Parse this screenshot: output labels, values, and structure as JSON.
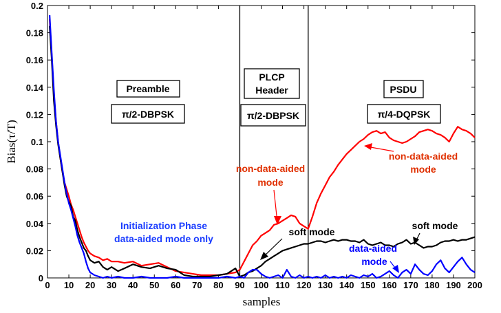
{
  "chart_data": {
    "type": "line",
    "xlabel": "samples",
    "ylabel": "Bias(τ/T)",
    "xlim": [
      0,
      200
    ],
    "ylim": [
      0,
      0.2
    ],
    "x_ticks": [
      "0",
      "10",
      "20",
      "30",
      "40",
      "50",
      "60",
      "70",
      "80",
      "90",
      "100",
      "110",
      "120",
      "130",
      "140",
      "150",
      "160",
      "170",
      "180",
      "190",
      "200"
    ],
    "y_ticks": [
      "0",
      "0.02",
      "0.04",
      "0.06",
      "0.08",
      "0.1",
      "0.12",
      "0.14",
      "0.16",
      "0.18",
      "0.2"
    ],
    "grid": false,
    "legend": "none",
    "region_dividers": [
      90,
      122
    ],
    "region_labels": {
      "preamble": "Preamble",
      "preamble_mod": "π/2-DBPSK",
      "plcp_line1": "PLCP",
      "plcp_line2": "Header",
      "plcp_mod": "π/2-DBPSK",
      "psdu": "PSDU",
      "psdu_mod": "π/4-DQPSK"
    },
    "annotations": {
      "init_line1": "Initialization Phase",
      "init_line2": "data-aided mode only",
      "ndam_left_line1": "non-data-aided",
      "ndam_left_line2": "mode",
      "ndam_right_line1": "non-data-aided",
      "ndam_right_line2": "mode",
      "soft_left": "soft mode",
      "soft_right": "soft mode",
      "da_line1": "data-aided",
      "da_line2": "mode"
    },
    "colors": {
      "red": "#ff0000",
      "black": "#000000",
      "blue": "#0000ff",
      "init_text": "#1a3cff",
      "ndam_text": "#e03000"
    },
    "series": [
      {
        "color": "#ff0000",
        "x": [
          1,
          2,
          3,
          4,
          5,
          6,
          7,
          8,
          9,
          10,
          11,
          12,
          13,
          14,
          15,
          16,
          17,
          18,
          19,
          20,
          22,
          24,
          26,
          28,
          30,
          33,
          36,
          40,
          44,
          48,
          52,
          56,
          60,
          64,
          68,
          72,
          76,
          80,
          84,
          88,
          90,
          92,
          94,
          96,
          98,
          100,
          102,
          104,
          106,
          108,
          110,
          112,
          114,
          116,
          118,
          120,
          122,
          124,
          126,
          128,
          130,
          132,
          134,
          136,
          138,
          140,
          142,
          144,
          146,
          148,
          150,
          152,
          154,
          156,
          158,
          160,
          162,
          164,
          166,
          168,
          170,
          172,
          174,
          176,
          178,
          180,
          182,
          184,
          186,
          188,
          190,
          192,
          194,
          196,
          198,
          200
        ],
        "y": [
          0.19,
          0.163,
          0.135,
          0.115,
          0.1,
          0.088,
          0.078,
          0.07,
          0.065,
          0.06,
          0.054,
          0.05,
          0.045,
          0.04,
          0.035,
          0.03,
          0.026,
          0.023,
          0.02,
          0.018,
          0.016,
          0.015,
          0.013,
          0.014,
          0.012,
          0.012,
          0.011,
          0.012,
          0.009,
          0.01,
          0.011,
          0.008,
          0.005,
          0.004,
          0.003,
          0.002,
          0.002,
          0.002,
          0.003,
          0.004,
          0.006,
          0.012,
          0.018,
          0.024,
          0.027,
          0.031,
          0.033,
          0.035,
          0.039,
          0.04,
          0.042,
          0.044,
          0.046,
          0.045,
          0.04,
          0.038,
          0.036,
          0.045,
          0.055,
          0.062,
          0.068,
          0.074,
          0.078,
          0.083,
          0.087,
          0.091,
          0.094,
          0.097,
          0.1,
          0.102,
          0.105,
          0.107,
          0.108,
          0.106,
          0.107,
          0.103,
          0.101,
          0.1,
          0.099,
          0.1,
          0.102,
          0.104,
          0.107,
          0.108,
          0.109,
          0.108,
          0.106,
          0.105,
          0.103,
          0.1,
          0.106,
          0.111,
          0.109,
          0.108,
          0.106,
          0.103
        ]
      },
      {
        "color": "#000000",
        "x": [
          1,
          2,
          3,
          4,
          5,
          6,
          7,
          8,
          9,
          10,
          11,
          12,
          13,
          14,
          15,
          16,
          17,
          18,
          19,
          20,
          22,
          24,
          26,
          28,
          30,
          33,
          36,
          40,
          44,
          48,
          52,
          56,
          60,
          64,
          68,
          72,
          76,
          80,
          84,
          88,
          90,
          92,
          94,
          96,
          98,
          100,
          102,
          104,
          106,
          108,
          110,
          112,
          114,
          116,
          118,
          120,
          122,
          124,
          126,
          128,
          130,
          132,
          134,
          136,
          138,
          140,
          142,
          144,
          146,
          148,
          150,
          152,
          154,
          156,
          158,
          160,
          162,
          164,
          166,
          168,
          170,
          172,
          174,
          176,
          178,
          180,
          182,
          184,
          186,
          188,
          190,
          192,
          194,
          196,
          198,
          200
        ],
        "y": [
          0.185,
          0.16,
          0.13,
          0.112,
          0.098,
          0.088,
          0.078,
          0.068,
          0.06,
          0.056,
          0.053,
          0.045,
          0.042,
          0.035,
          0.03,
          0.026,
          0.022,
          0.02,
          0.016,
          0.013,
          0.011,
          0.012,
          0.008,
          0.006,
          0.008,
          0.005,
          0.007,
          0.01,
          0.008,
          0.007,
          0.009,
          0.007,
          0.006,
          0.002,
          0.001,
          0.001,
          0.001,
          0.002,
          0.003,
          0.007,
          0.001,
          0.002,
          0.004,
          0.005,
          0.007,
          0.009,
          0.012,
          0.014,
          0.016,
          0.018,
          0.02,
          0.021,
          0.022,
          0.023,
          0.024,
          0.025,
          0.025,
          0.026,
          0.027,
          0.027,
          0.026,
          0.027,
          0.028,
          0.027,
          0.028,
          0.028,
          0.027,
          0.027,
          0.026,
          0.028,
          0.025,
          0.024,
          0.025,
          0.026,
          0.024,
          0.024,
          0.023,
          0.025,
          0.026,
          0.028,
          0.025,
          0.026,
          0.024,
          0.022,
          0.023,
          0.023,
          0.024,
          0.026,
          0.027,
          0.027,
          0.028,
          0.027,
          0.028,
          0.028,
          0.029,
          0.03
        ]
      },
      {
        "color": "#0000ff",
        "x": [
          1,
          2,
          3,
          4,
          5,
          6,
          7,
          8,
          9,
          10,
          11,
          12,
          13,
          14,
          15,
          16,
          17,
          18,
          19,
          20,
          22,
          24,
          26,
          28,
          30,
          33,
          36,
          40,
          44,
          48,
          52,
          56,
          60,
          64,
          68,
          72,
          76,
          80,
          84,
          88,
          90,
          92,
          94,
          96,
          98,
          100,
          102,
          104,
          106,
          108,
          110,
          112,
          114,
          116,
          118,
          120,
          122,
          124,
          126,
          128,
          130,
          132,
          134,
          136,
          138,
          140,
          142,
          144,
          146,
          148,
          150,
          152,
          154,
          156,
          158,
          160,
          162,
          164,
          166,
          168,
          170,
          172,
          174,
          176,
          178,
          180,
          182,
          184,
          186,
          188,
          190,
          192,
          194,
          196,
          198,
          200
        ],
        "y": [
          0.193,
          0.165,
          0.138,
          0.115,
          0.1,
          0.09,
          0.08,
          0.07,
          0.062,
          0.055,
          0.05,
          0.044,
          0.038,
          0.031,
          0.026,
          0.022,
          0.018,
          0.012,
          0.007,
          0.004,
          0.002,
          0.001,
          0.0,
          0.001,
          0.0,
          0.001,
          0.0,
          0.0,
          0.001,
          0.0,
          0.0,
          0.0,
          0.001,
          0.0,
          0.0,
          0.0,
          0.0,
          0.0,
          0.001,
          0.0,
          0.001,
          0.0,
          0.004,
          0.006,
          0.006,
          0.003,
          0.001,
          0.0,
          0.001,
          0.002,
          0.0,
          0.006,
          0.001,
          0.0,
          0.002,
          0.0,
          0.001,
          0.0,
          0.001,
          0.0,
          0.002,
          0.0,
          0.001,
          0.0,
          0.001,
          0.0,
          0.002,
          0.001,
          0.0,
          0.002,
          0.001,
          0.003,
          0.0,
          0.001,
          0.003,
          0.005,
          0.002,
          0.0,
          0.004,
          0.006,
          0.003,
          0.01,
          0.006,
          0.003,
          0.002,
          0.005,
          0.01,
          0.013,
          0.007,
          0.004,
          0.008,
          0.012,
          0.015,
          0.01,
          0.006,
          0.004
        ]
      }
    ]
  }
}
